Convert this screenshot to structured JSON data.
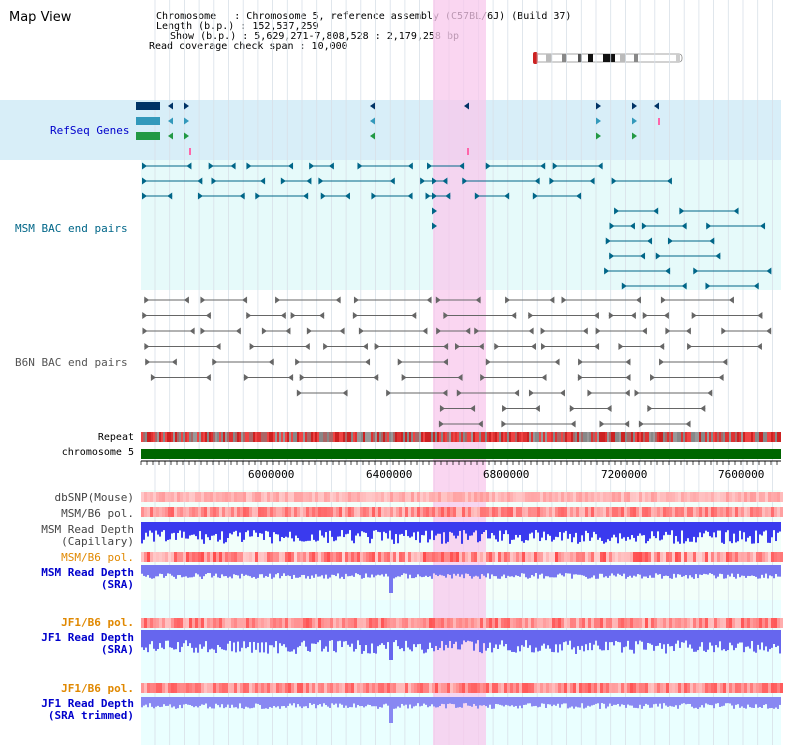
{
  "page": {
    "title": "Map View"
  },
  "info": {
    "chromosome": "Chromosome   : Chromosome 5, reference assembly (C57BL/6J) (Build 37)",
    "length": "Length (b.p.) : 152,537,259",
    "show": "Show (b.p.) : 5,629,271-7,808,528 : 2,179,258 bp",
    "coverage": "Read coverage check span : 10,000"
  },
  "tracks": {
    "refseq": "RefSeq Genes",
    "msm_bac": "MSM BAC end pairs",
    "b6n_bac": "B6N BAC end pairs",
    "repeat": "Repeat",
    "chromosome": "chromosome 5",
    "dbsnp": "dbSNP(Mouse)",
    "msm_b6_pol_1": "MSM/B6 pol.",
    "msm_depth_cap_1": "MSM Read Depth",
    "msm_depth_cap_2": "(Capillary)",
    "msm_b6_pol_2": "MSM/B6 pol.",
    "msm_depth_sra_1": "MSM Read Depth",
    "msm_depth_sra_2": "(SRA)",
    "jf1_b6_pol_1": "JF1/B6 pol.",
    "jf1_depth_sra_1": "JF1 Read Depth",
    "jf1_depth_sra_2": "(SRA)",
    "jf1_b6_pol_2": "JF1/B6 pol.",
    "jf1_depth_trim_1": "JF1 Read Depth",
    "jf1_depth_trim_2": "(SRA trimmed)"
  },
  "axis_ticks": [
    "6000000",
    "6400000",
    "6800000",
    "7200000",
    "7600000"
  ],
  "colors": {
    "refseq_label": "#0000cc",
    "msm_label": "#006688",
    "b6n_label": "#555555",
    "pol_label": "#e08800",
    "depth_label": "#0000cc",
    "highlight": "#f8c8ec",
    "chromosome_bar": "#006600"
  }
}
